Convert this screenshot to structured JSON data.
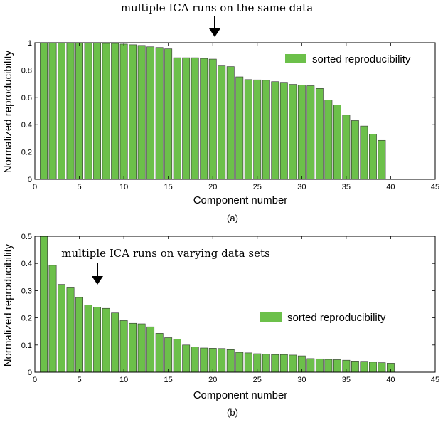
{
  "chart_data": [
    {
      "type": "bar",
      "caption": "(a)",
      "annotation": "multiple ICA runs on the same data",
      "xlabel": "Component number",
      "ylabel": "Normalized reproducibility",
      "xlim": [
        0,
        45
      ],
      "ylim": [
        0,
        1
      ],
      "xticks": [
        0,
        5,
        10,
        15,
        20,
        25,
        30,
        35,
        40,
        45
      ],
      "yticks": [
        0,
        0.2,
        0.4,
        0.6,
        0.8,
        1
      ],
      "ytick_labels": [
        "0",
        "0.2",
        "0.4",
        "0.6",
        "0.8",
        "1"
      ],
      "grid": false,
      "legend": {
        "label": "sorted reproducibility",
        "placement": "top-right"
      },
      "colors": {
        "bar": "#6cc04a",
        "edge": "#333333"
      },
      "x": [
        1,
        2,
        3,
        4,
        5,
        6,
        7,
        8,
        9,
        10,
        11,
        12,
        13,
        14,
        15,
        16,
        17,
        18,
        19,
        20,
        21,
        22,
        23,
        24,
        25,
        26,
        27,
        28,
        29,
        30,
        31,
        32,
        33,
        34,
        35,
        36,
        37,
        38,
        39,
        40
      ],
      "values": [
        1.0,
        1.0,
        1.0,
        1.0,
        1.0,
        1.0,
        1.0,
        0.995,
        0.995,
        0.99,
        0.985,
        0.98,
        0.97,
        0.965,
        0.955,
        0.89,
        0.89,
        0.89,
        0.885,
        0.88,
        0.83,
        0.825,
        0.75,
        0.73,
        0.728,
        0.725,
        0.715,
        0.71,
        0.695,
        0.69,
        0.685,
        0.665,
        0.58,
        0.545,
        0.47,
        0.43,
        0.39,
        0.33,
        0.285,
        0.0
      ]
    },
    {
      "type": "bar",
      "caption": "(b)",
      "annotation": "multiple ICA runs on varying data sets",
      "xlabel": "Component number",
      "ylabel": "Normalized reproducibility",
      "xlim": [
        0,
        45
      ],
      "ylim": [
        0,
        0.5
      ],
      "xticks": [
        0,
        5,
        10,
        15,
        20,
        25,
        30,
        35,
        40,
        45
      ],
      "yticks": [
        0,
        0.1,
        0.2,
        0.3,
        0.4,
        0.5
      ],
      "ytick_labels": [
        "0",
        "0.1",
        "0.2",
        "0.3",
        "0.4",
        "0.5"
      ],
      "grid": false,
      "legend": {
        "label": "sorted reproducibility",
        "placement": "center-right"
      },
      "colors": {
        "bar": "#6cc04a",
        "edge": "#333333"
      },
      "x": [
        1,
        2,
        3,
        4,
        5,
        6,
        7,
        8,
        9,
        10,
        11,
        12,
        13,
        14,
        15,
        16,
        17,
        18,
        19,
        20,
        21,
        22,
        23,
        24,
        25,
        26,
        27,
        28,
        29,
        30,
        31,
        32,
        33,
        34,
        35,
        36,
        37,
        38,
        39,
        40
      ],
      "values": [
        0.5,
        0.393,
        0.323,
        0.313,
        0.275,
        0.247,
        0.24,
        0.235,
        0.218,
        0.19,
        0.18,
        0.178,
        0.167,
        0.143,
        0.127,
        0.122,
        0.1,
        0.093,
        0.089,
        0.088,
        0.087,
        0.083,
        0.073,
        0.071,
        0.068,
        0.066,
        0.065,
        0.065,
        0.063,
        0.06,
        0.05,
        0.049,
        0.047,
        0.046,
        0.044,
        0.041,
        0.04,
        0.037,
        0.035,
        0.033
      ]
    }
  ]
}
